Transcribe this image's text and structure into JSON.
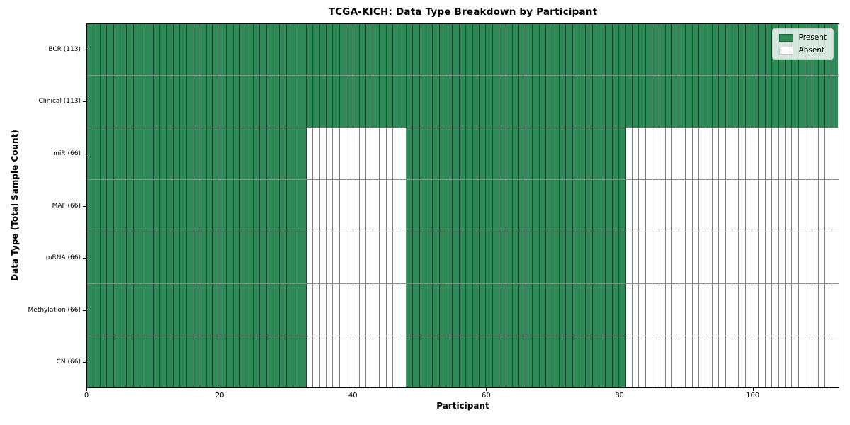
{
  "chart_data": {
    "type": "heatmap",
    "title": "TCGA-KICH: Data Type Breakdown by Participant",
    "xlabel": "Participant",
    "ylabel": "Data Type (Total Sample Count)",
    "n_participants": 113,
    "x_ticks": [
      0,
      20,
      40,
      60,
      80,
      100
    ],
    "xlim": [
      0,
      113
    ],
    "grid": false,
    "colors": {
      "present": "#2e8b57",
      "absent": "#ffffff",
      "cell_border": "rgba(0,0,0,0.5)",
      "spine": "#000000"
    },
    "legend": {
      "position": "upper right",
      "items": [
        {
          "label": "Present",
          "color": "#2e8b57"
        },
        {
          "label": "Absent",
          "color": "#ffffff"
        }
      ]
    },
    "rows": [
      {
        "label": "BCR (113)",
        "data_type": "BCR",
        "total_samples": 113,
        "present_ranges": [
          [
            0,
            113
          ]
        ]
      },
      {
        "label": "Clinical (113)",
        "data_type": "Clinical",
        "total_samples": 113,
        "present_ranges": [
          [
            0,
            113
          ]
        ]
      },
      {
        "label": "miR (66)",
        "data_type": "miR",
        "total_samples": 66,
        "present_ranges": [
          [
            0,
            33
          ],
          [
            48,
            81
          ]
        ]
      },
      {
        "label": "MAF (66)",
        "data_type": "MAF",
        "total_samples": 66,
        "present_ranges": [
          [
            0,
            33
          ],
          [
            48,
            81
          ]
        ]
      },
      {
        "label": "mRNA (66)",
        "data_type": "mRNA",
        "total_samples": 66,
        "present_ranges": [
          [
            0,
            33
          ],
          [
            48,
            81
          ]
        ]
      },
      {
        "label": "Methylation (66)",
        "data_type": "Methylation",
        "total_samples": 66,
        "present_ranges": [
          [
            0,
            33
          ],
          [
            48,
            81
          ]
        ]
      },
      {
        "label": "CN (66)",
        "data_type": "CN",
        "total_samples": 66,
        "present_ranges": [
          [
            0,
            33
          ],
          [
            48,
            81
          ]
        ]
      }
    ]
  }
}
